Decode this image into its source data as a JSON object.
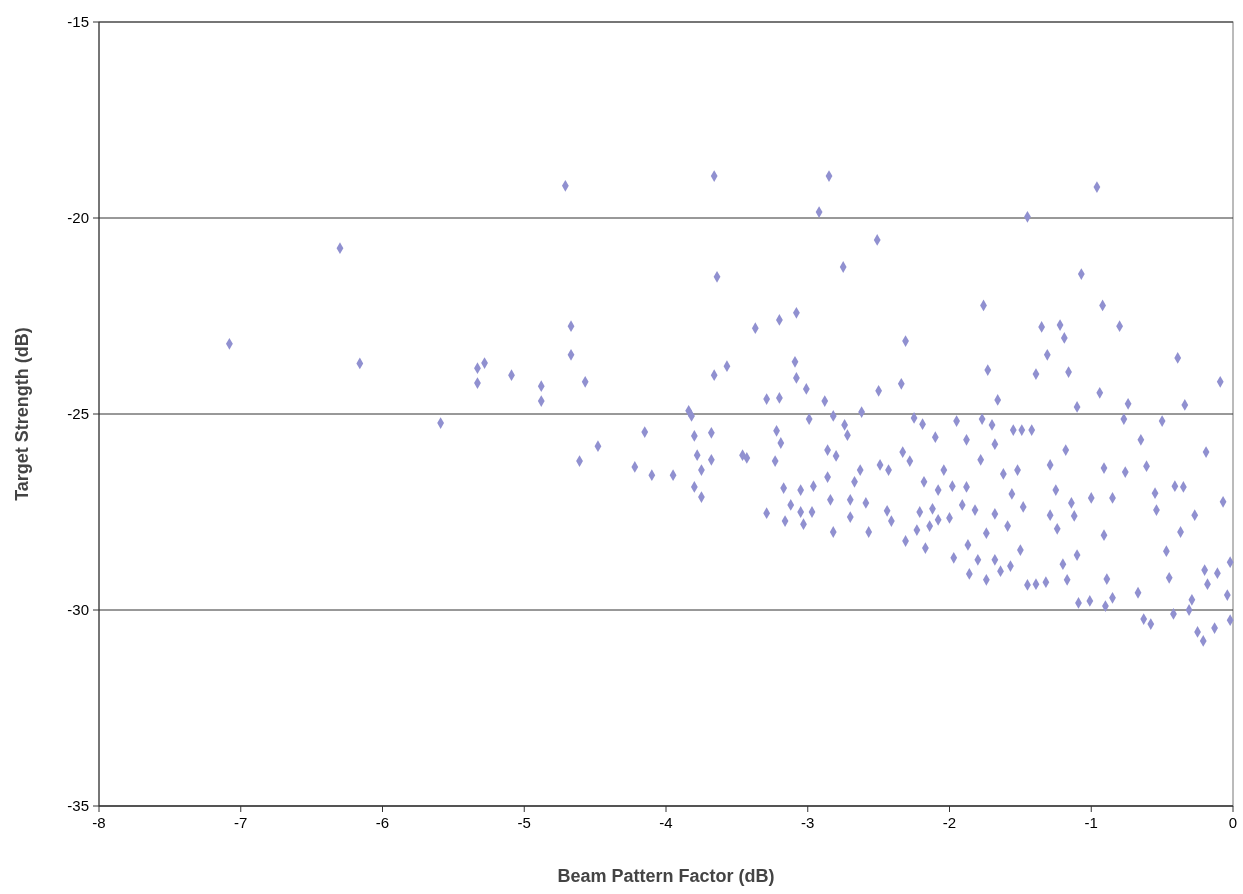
{
  "chart_data": {
    "type": "scatter",
    "xlabel": "Beam Pattern Factor (dB)",
    "ylabel": "Target Strength (dB)",
    "xlim": [
      -8,
      0
    ],
    "xticks": [
      -8,
      -7,
      -6,
      -5,
      -4,
      -3,
      -2,
      -1,
      0
    ],
    "ylim": [
      -35,
      -15
    ],
    "yticks": [
      -35,
      -30,
      -25,
      -20,
      -15
    ],
    "grid": "y",
    "marker": "diamond",
    "series": [
      {
        "color": "#9090d0",
        "x": [
          -7.08,
          -6.3,
          -6.16,
          -5.59,
          -5.33,
          -5.33,
          -5.28,
          -5.09,
          -4.88,
          -4.88,
          -4.71,
          -4.67,
          -4.67,
          -4.61,
          -4.57,
          -4.48,
          -4.22,
          -4.15,
          -4.1,
          -3.95,
          -3.84,
          -3.82,
          -3.8,
          -3.78,
          -3.8,
          -3.75,
          -3.75,
          -3.66,
          -3.64,
          -3.66,
          -3.68,
          -3.68,
          -3.57,
          -3.37,
          -3.46,
          -3.43,
          -3.29,
          -3.29,
          -3.22,
          -3.23,
          -3.2,
          -3.2,
          -3.19,
          -3.17,
          -3.16,
          -3.12,
          -3.08,
          -3.09,
          -3.08,
          -3.05,
          -3.05,
          -3.03,
          -3.01,
          -2.99,
          -2.92,
          -2.96,
          -2.97,
          -2.85,
          -2.88,
          -2.86,
          -2.86,
          -2.84,
          -2.82,
          -2.8,
          -2.82,
          -2.75,
          -2.74,
          -2.72,
          -2.7,
          -2.7,
          -2.67,
          -2.63,
          -2.62,
          -2.59,
          -2.57,
          -2.51,
          -2.5,
          -2.49,
          -2.44,
          -2.43,
          -2.41,
          -2.34,
          -2.31,
          -2.33,
          -2.31,
          -2.28,
          -2.25,
          -2.23,
          -2.21,
          -2.19,
          -2.18,
          -2.17,
          -2.14,
          -2.12,
          -2.1,
          -2.08,
          -2.08,
          -2.04,
          -2.0,
          -1.98,
          -1.97,
          -1.95,
          -1.91,
          -1.88,
          -1.88,
          -1.87,
          -1.86,
          -1.82,
          -1.8,
          -1.78,
          -1.76,
          -1.77,
          -1.73,
          -1.74,
          -1.74,
          -1.7,
          -1.68,
          -1.68,
          -1.68,
          -1.66,
          -1.64,
          -1.62,
          -1.59,
          -1.57,
          -1.56,
          -1.55,
          -1.52,
          -1.5,
          -1.49,
          -1.48,
          -1.45,
          -1.45,
          -1.42,
          -1.39,
          -1.39,
          -1.35,
          -1.32,
          -1.31,
          -1.29,
          -1.29,
          -1.25,
          -1.24,
          -1.22,
          -1.2,
          -1.19,
          -1.18,
          -1.17,
          -1.16,
          -1.14,
          -1.12,
          -1.1,
          -1.1,
          -1.09,
          -1.07,
          -1.01,
          -1.0,
          -0.96,
          -0.94,
          -0.92,
          -0.91,
          -0.91,
          -0.9,
          -0.89,
          -0.85,
          -0.85,
          -0.8,
          -0.77,
          -0.76,
          -0.74,
          -0.67,
          -0.65,
          -0.63,
          -0.61,
          -0.58,
          -0.55,
          -0.54,
          -0.5,
          -0.47,
          -0.45,
          -0.42,
          -0.41,
          -0.39,
          -0.37,
          -0.35,
          -0.34,
          -0.31,
          -0.29,
          -0.27,
          -0.25,
          -0.21,
          -0.2,
          -0.19,
          -0.18,
          -0.13,
          -0.11,
          -0.09,
          -0.07,
          -0.04,
          -0.02,
          -0.02
        ],
        "values": [
          -23.21,
          -20.77,
          -23.71,
          -25.23,
          -23.83,
          -24.21,
          -23.7,
          -24.01,
          -24.29,
          -24.67,
          -19.18,
          -22.76,
          -23.49,
          -26.2,
          -24.18,
          -25.82,
          -26.35,
          -25.46,
          -26.56,
          -26.56,
          -24.92,
          -25.05,
          -25.56,
          -26.05,
          -26.86,
          -26.43,
          -27.12,
          -18.93,
          -21.5,
          -24.01,
          -25.48,
          -26.17,
          -23.78,
          -22.81,
          -26.05,
          -26.12,
          -27.53,
          -24.62,
          -25.43,
          -26.2,
          -22.6,
          -24.59,
          -25.74,
          -26.89,
          -27.73,
          -27.32,
          -22.42,
          -23.67,
          -24.08,
          -26.94,
          -27.5,
          -27.81,
          -24.36,
          -25.13,
          -19.85,
          -26.84,
          -27.5,
          -18.93,
          -24.67,
          -25.92,
          -26.61,
          -27.19,
          -25.05,
          -26.07,
          -28.01,
          -21.25,
          -25.28,
          -25.54,
          -27.63,
          -27.19,
          -26.73,
          -26.43,
          -24.95,
          -27.27,
          -28.01,
          -20.56,
          -24.41,
          -26.3,
          -27.47,
          -26.43,
          -27.73,
          -24.23,
          -23.14,
          -25.97,
          -28.24,
          -26.2,
          -25.1,
          -27.96,
          -27.5,
          -25.26,
          -26.73,
          -28.42,
          -27.86,
          -27.42,
          -25.59,
          -26.94,
          -27.7,
          -26.43,
          -27.65,
          -26.84,
          -28.67,
          -25.18,
          -27.32,
          -26.86,
          -25.66,
          -28.34,
          -29.08,
          -27.45,
          -28.72,
          -26.17,
          -22.23,
          -25.13,
          -23.88,
          -28.04,
          -29.23,
          -25.28,
          -27.55,
          -28.72,
          -25.77,
          -24.64,
          -29.01,
          -26.53,
          -27.86,
          -28.88,
          -27.04,
          -25.41,
          -26.43,
          -28.47,
          -25.41,
          -27.37,
          -19.97,
          -29.36,
          -25.41,
          -23.98,
          -29.34,
          -22.78,
          -29.29,
          -23.49,
          -26.3,
          -27.58,
          -26.94,
          -27.93,
          -22.73,
          -28.83,
          -23.06,
          -25.92,
          -29.23,
          -23.93,
          -27.27,
          -27.6,
          -24.82,
          -28.6,
          -29.82,
          -21.43,
          -29.77,
          -27.14,
          -19.21,
          -24.46,
          -22.23,
          -28.09,
          -26.38,
          -29.9,
          -29.21,
          -27.14,
          -29.69,
          -22.76,
          -25.13,
          -26.48,
          -24.74,
          -29.56,
          -25.66,
          -30.23,
          -26.33,
          -30.36,
          -27.02,
          -27.45,
          -25.18,
          -28.5,
          -29.18,
          -30.1,
          -26.84,
          -23.57,
          -28.01,
          -26.86,
          -24.77,
          -30.0,
          -29.74,
          -27.58,
          -30.56,
          -30.79,
          -28.98,
          -25.97,
          -29.34,
          -30.46,
          -29.06,
          -24.18,
          -27.24,
          -29.62,
          -28.78,
          -30.26
        ]
      }
    ]
  }
}
